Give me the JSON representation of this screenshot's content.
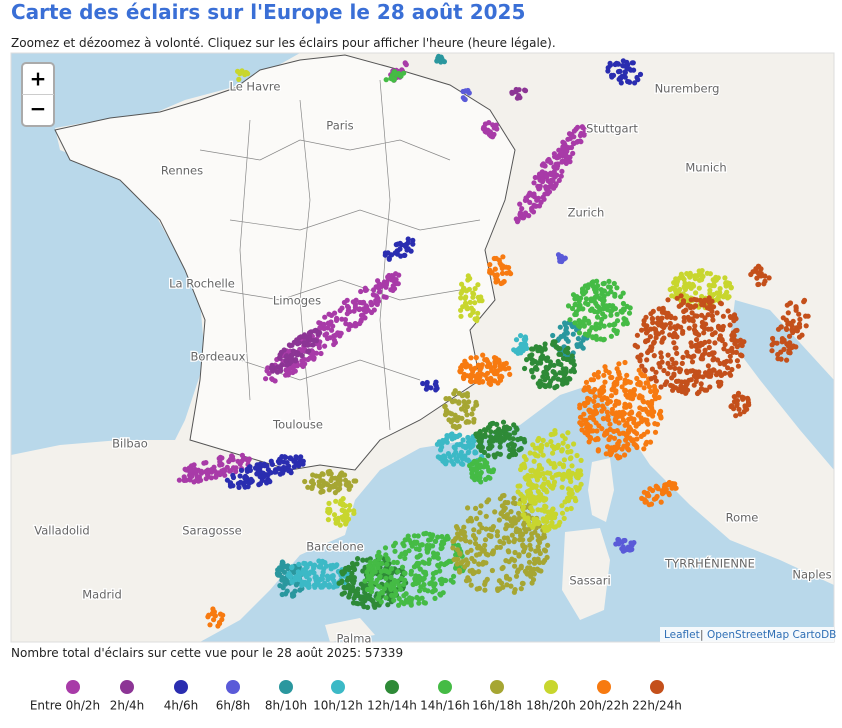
{
  "header": {
    "title": "Carte des éclairs sur l'Europe le 28 août 2025",
    "subtitle": "Zoomez et dézoomez à volonté. Cliquez sur les éclairs pour afficher l'heure (heure légale)."
  },
  "zoom": {
    "in": "+",
    "out": "−"
  },
  "map": {
    "labels": [
      "Le Havre",
      "Paris",
      "Rennes",
      "Nuremberg",
      "Stuttgart",
      "Munich",
      "Zurich",
      "La Rochelle",
      "Limoges",
      "Bordeaux",
      "Toulouse",
      "Bilbao",
      "Valladolid",
      "Saragosse",
      "Madrid",
      "Barcelone",
      "Palma",
      "Sassari",
      "Rome",
      "Naples",
      "TYRRHÉNIENNE"
    ],
    "attribution": {
      "leaflet": "Leaflet",
      "separator": "|",
      "tiles": "OpenStreetMap CartoDB"
    }
  },
  "total": "Nombre total d'éclairs sur cette vue pour le 28 août 2025: 57339",
  "legend": [
    {
      "label": "Entre 0h/2h",
      "color": "#a83ba8"
    },
    {
      "label": "2h/4h",
      "color": "#8c3595"
    },
    {
      "label": "4h/6h",
      "color": "#2a2db0"
    },
    {
      "label": "6h/8h",
      "color": "#5a5ad8"
    },
    {
      "label": "8h/10h",
      "color": "#2a979e"
    },
    {
      "label": "10h/12h",
      "color": "#3cb9c6"
    },
    {
      "label": "12h/14h",
      "color": "#2e8a37"
    },
    {
      "label": "14h/16h",
      "color": "#45bb45"
    },
    {
      "label": "16h/18h",
      "color": "#a6a633"
    },
    {
      "label": "18h/20h",
      "color": "#c8d62e"
    },
    {
      "label": "20h/22h",
      "color": "#f77a10"
    },
    {
      "label": "22h/24h",
      "color": "#c4501b"
    }
  ]
}
